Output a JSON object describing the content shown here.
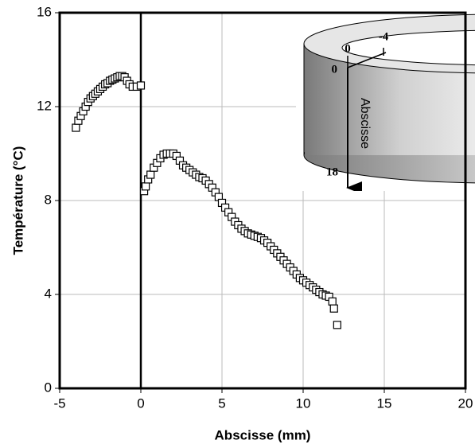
{
  "chart_data": {
    "type": "scatter",
    "x_label": "Abscisse (mm)",
    "y_label": "Température (°C)",
    "xlim": [
      -5,
      20
    ],
    "ylim": [
      0,
      16
    ],
    "xticks": [
      -5,
      0,
      5,
      10,
      15,
      20
    ],
    "yticks": [
      0,
      4,
      8,
      12,
      16
    ],
    "grid": true,
    "color": "#000000",
    "marker": "square-open",
    "annotations": [
      "0",
      "-4",
      "0",
      "18",
      "Abscisse"
    ],
    "series": [
      {
        "color": "#000000",
        "x": [
          -4.0,
          -3.85,
          -3.7,
          -3.55,
          -3.4,
          -3.25,
          -3.1,
          -2.95,
          -2.8,
          -2.65,
          -2.5,
          -2.35,
          -2.2,
          -2.05,
          -1.9,
          -1.75,
          -1.6,
          -1.45,
          -1.3,
          -1.15,
          -1.0,
          -0.85,
          -0.7,
          -0.5,
          -0.25,
          0.0,
          0.2,
          0.3,
          0.45,
          0.6,
          0.8,
          1.0,
          1.2,
          1.4,
          1.6,
          1.8,
          2.0,
          2.2,
          2.4,
          2.6,
          2.8,
          3.0,
          3.2,
          3.4,
          3.6,
          3.8,
          4.0,
          4.2,
          4.4,
          4.6,
          4.8,
          5.0,
          5.2,
          5.4,
          5.6,
          5.8,
          6.0,
          6.2,
          6.4,
          6.6,
          6.8,
          7.0,
          7.2,
          7.4,
          7.6,
          7.8,
          8.0,
          8.2,
          8.4,
          8.6,
          8.8,
          9.0,
          9.2,
          9.4,
          9.6,
          9.8,
          10.0,
          10.2,
          10.4,
          10.6,
          10.8,
          11.0,
          11.2,
          11.4,
          11.6,
          11.8,
          11.9,
          12.1
        ],
        "values": [
          11.1,
          11.4,
          11.6,
          11.8,
          12.0,
          12.2,
          12.35,
          12.45,
          12.55,
          12.65,
          12.75,
          12.85,
          12.95,
          13.0,
          13.1,
          13.15,
          13.2,
          13.25,
          13.3,
          13.3,
          13.25,
          13.1,
          12.95,
          12.85,
          12.85,
          12.9,
          8.4,
          8.6,
          8.9,
          9.1,
          9.4,
          9.6,
          9.8,
          9.95,
          10.0,
          10.0,
          10.0,
          9.9,
          9.7,
          9.5,
          9.4,
          9.3,
          9.2,
          9.1,
          9.0,
          8.95,
          8.85,
          8.7,
          8.55,
          8.35,
          8.15,
          7.9,
          7.7,
          7.5,
          7.3,
          7.1,
          6.95,
          6.8,
          6.7,
          6.6,
          6.55,
          6.5,
          6.45,
          6.4,
          6.3,
          6.2,
          6.05,
          5.9,
          5.75,
          5.6,
          5.45,
          5.3,
          5.15,
          5.0,
          4.85,
          4.7,
          4.6,
          4.5,
          4.4,
          4.3,
          4.2,
          4.1,
          4.0,
          3.95,
          3.9,
          3.7,
          3.4,
          2.7
        ]
      }
    ]
  }
}
